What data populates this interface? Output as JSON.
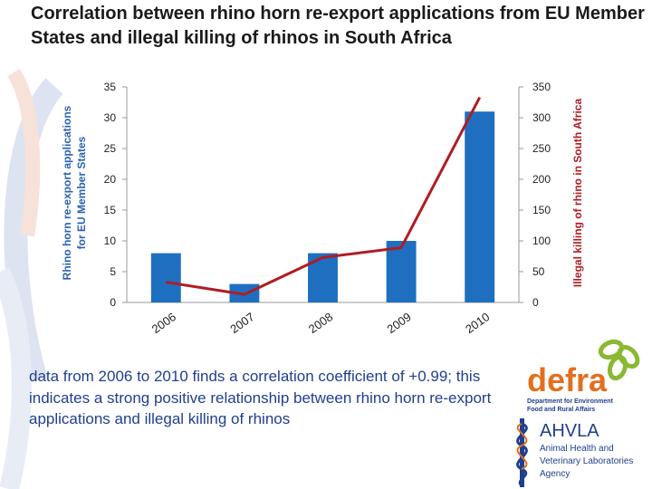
{
  "slide": {
    "title": "Correlation between rhino horn re-export applications from EU Member States and illegal killing of rhinos in South Africa",
    "description": "data from 2006 to 2010 finds a correlation coefficient of +0.99; this indicates a strong positive relationship between rhino horn re-export applications and illegal killing of rhinos"
  },
  "logos": {
    "defra": {
      "name": "defra",
      "subtitle": "Department for Environment Food and Rural Affairs"
    },
    "ahvla": {
      "name": "AHVLA",
      "line1": "Animal Health and",
      "line2": "Veterinary Laboratories",
      "line3": "Agency"
    }
  },
  "chart_data": {
    "type": "bar",
    "categories": [
      "2006",
      "2007",
      "2008",
      "2009",
      "2010"
    ],
    "series": [
      {
        "name": "Rhino horn re-export applications for EU Member States",
        "type": "bar",
        "axis": "left",
        "values": [
          8,
          3,
          8,
          10,
          31
        ],
        "color": "#1f6fc0"
      },
      {
        "name": "Illegal killing of rhino in South Africa",
        "type": "line",
        "axis": "right",
        "values": [
          33,
          13,
          73,
          89,
          333
        ],
        "color": "#b01c22"
      }
    ],
    "ylabel": "Rhino horn re-export applications for EU Member States",
    "y2label": "Illegal killing of rhino in South Africa",
    "ylim": [
      0,
      35
    ],
    "y2lim": [
      0,
      350
    ],
    "yticks": [
      "0",
      "5",
      "10",
      "15",
      "20",
      "25",
      "30",
      "35"
    ],
    "y2ticks": [
      "0",
      "50",
      "100",
      "150",
      "200",
      "250",
      "300",
      "350"
    ],
    "grid": false,
    "legend": "none"
  }
}
